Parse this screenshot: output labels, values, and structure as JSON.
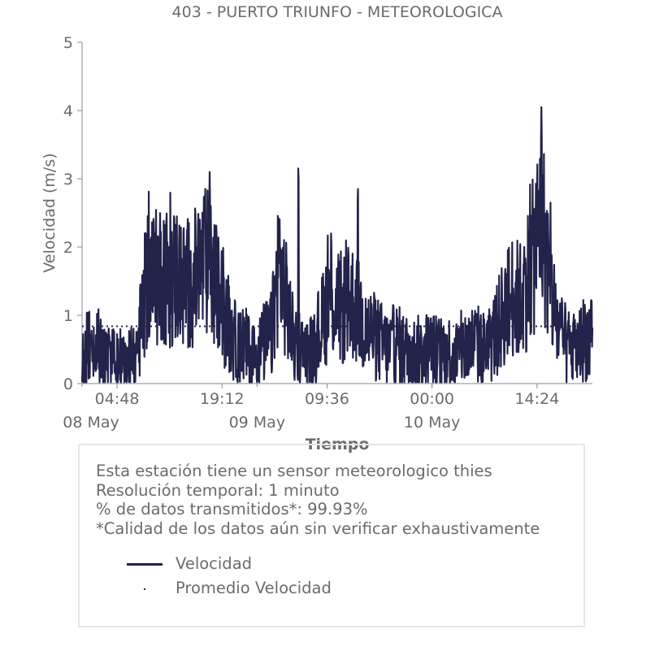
{
  "colors": {
    "series": "#22234a",
    "text": "#6b6b6b",
    "axis": "#888888"
  },
  "chart_data": {
    "type": "line",
    "title": "403 - PUERTO TRIUNFO - METEOROLOGICA",
    "xlabel": "Tiempo",
    "ylabel": "Velocidad (m/s)",
    "ylim": [
      0,
      5
    ],
    "yticks": [
      0,
      1,
      2,
      3,
      4,
      5
    ],
    "xlim": [
      "2024-05-08 00:00",
      "2024-05-10 22:00"
    ],
    "xticks": [
      {
        "value": "2024-05-08 04:48",
        "label": "04:48"
      },
      {
        "value": "2024-05-08 19:12",
        "label": "19:12"
      },
      {
        "value": "2024-05-09 09:36",
        "label": "09:36"
      },
      {
        "value": "2024-05-10 00:00",
        "label": "00:00"
      },
      {
        "value": "2024-05-10 14:24",
        "label": "14:24"
      }
    ],
    "date_labels": [
      {
        "value": "2024-05-08 00:00",
        "label": "08 May"
      },
      {
        "value": "2024-05-09 00:00",
        "label": "09 May"
      },
      {
        "value": "2024-05-10 00:00",
        "label": "10 May"
      }
    ],
    "grid": false,
    "series": [
      {
        "name": "Velocidad",
        "style": "line",
        "x": [
          "2024-05-08 00:00",
          "2024-05-08 01:00",
          "2024-05-08 02:00",
          "2024-05-08 03:00",
          "2024-05-08 04:00",
          "2024-05-08 05:00",
          "2024-05-08 06:00",
          "2024-05-08 07:00",
          "2024-05-08 08:00",
          "2024-05-08 09:00",
          "2024-05-08 10:00",
          "2024-05-08 11:00",
          "2024-05-08 12:00",
          "2024-05-08 13:00",
          "2024-05-08 14:00",
          "2024-05-08 15:00",
          "2024-05-08 16:00",
          "2024-05-08 17:00",
          "2024-05-08 18:00",
          "2024-05-08 19:00",
          "2024-05-08 20:00",
          "2024-05-08 21:00",
          "2024-05-08 22:00",
          "2024-05-08 23:00",
          "2024-05-09 00:00",
          "2024-05-09 01:00",
          "2024-05-09 02:00",
          "2024-05-09 03:00",
          "2024-05-09 04:00",
          "2024-05-09 05:00",
          "2024-05-09 06:00",
          "2024-05-09 07:00",
          "2024-05-09 08:00",
          "2024-05-09 09:00",
          "2024-05-09 10:00",
          "2024-05-09 11:00",
          "2024-05-09 12:00",
          "2024-05-09 13:00",
          "2024-05-09 14:00",
          "2024-05-09 15:00",
          "2024-05-09 16:00",
          "2024-05-09 17:00",
          "2024-05-09 18:00",
          "2024-05-09 19:00",
          "2024-05-09 20:00",
          "2024-05-09 21:00",
          "2024-05-09 22:00",
          "2024-05-09 23:00",
          "2024-05-10 00:00",
          "2024-05-10 01:00",
          "2024-05-10 02:00",
          "2024-05-10 03:00",
          "2024-05-10 04:00",
          "2024-05-10 05:00",
          "2024-05-10 06:00",
          "2024-05-10 07:00",
          "2024-05-10 08:00",
          "2024-05-10 09:00",
          "2024-05-10 10:00",
          "2024-05-10 11:00",
          "2024-05-10 12:00",
          "2024-05-10 13:00",
          "2024-05-10 14:00",
          "2024-05-10 15:00",
          "2024-05-10 16:00",
          "2024-05-10 17:00",
          "2024-05-10 18:00",
          "2024-05-10 19:00",
          "2024-05-10 20:00",
          "2024-05-10 21:00",
          "2024-05-10 22:00"
        ],
        "values": [
          0.45,
          0.5,
          0.55,
          0.4,
          0.35,
          0.3,
          0.4,
          0.3,
          0.8,
          1.6,
          1.5,
          1.7,
          1.5,
          1.6,
          1.4,
          1.5,
          1.6,
          1.8,
          1.5,
          1.2,
          0.9,
          0.6,
          0.6,
          0.45,
          0.4,
          0.6,
          0.7,
          1.8,
          1.2,
          0.6,
          0.5,
          0.4,
          0.6,
          0.9,
          1.3,
          1.1,
          1.1,
          1.2,
          1.0,
          0.8,
          0.7,
          0.6,
          0.5,
          0.6,
          0.5,
          0.45,
          0.45,
          0.5,
          0.5,
          0.45,
          0.5,
          0.4,
          0.5,
          0.55,
          0.6,
          0.5,
          0.6,
          0.8,
          1.1,
          1.3,
          1.2,
          1.5,
          1.9,
          2.5,
          1.6,
          0.9,
          0.6,
          0.5,
          0.5,
          0.7,
          0.6
        ],
        "peaks": [
          {
            "x": "2024-05-08 17:30",
            "y": 3.1
          },
          {
            "x": "2024-05-09 05:40",
            "y": 3.3
          },
          {
            "x": "2024-05-09 10:10",
            "y": 2.35
          },
          {
            "x": "2024-05-09 13:50",
            "y": 3.0
          },
          {
            "x": "2024-05-10 15:00",
            "y": 4.05
          }
        ]
      },
      {
        "name": "Promedio Velocidad",
        "style": "dotted",
        "value": 0.84
      }
    ]
  },
  "info": {
    "line1": "Esta estación tiene un sensor meteorologico thies",
    "line2": "Resolución temporal: 1 minuto",
    "line3": "% de datos transmitidos*: 99.93%",
    "line4": "*Calidad de los datos aún sin verificar exhaustivamente"
  },
  "legend": {
    "velocidad": "Velocidad",
    "promedio": "Promedio Velocidad"
  }
}
